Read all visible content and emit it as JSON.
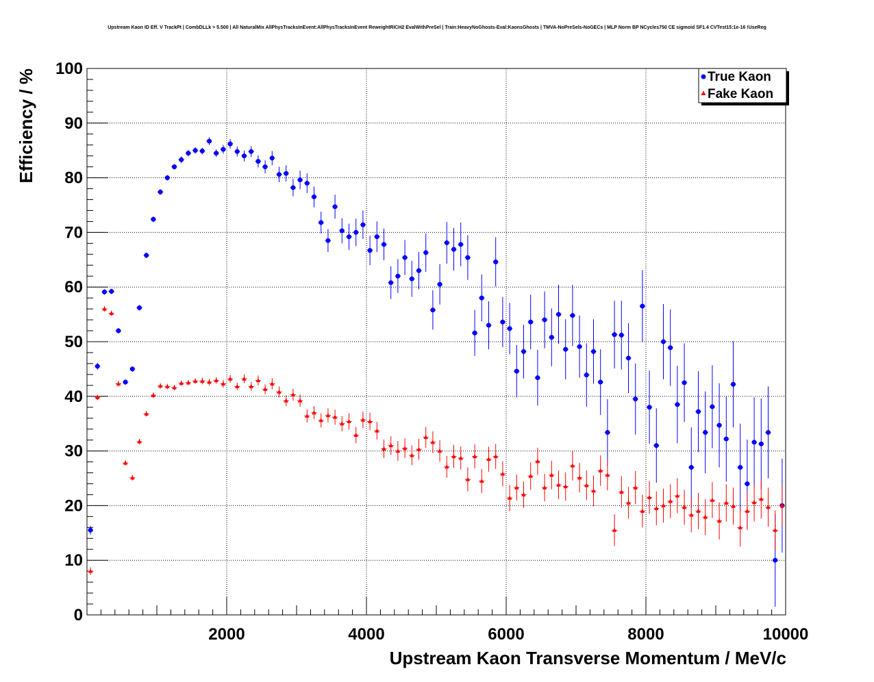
{
  "chart_data": {
    "type": "scatter",
    "title": "Upstream Kaon ID Eff. V TrackPt | CombDLLk > 5.500 | All NaturalMix AllPhysTracksInEvent:AllPhysTracksInEvent ReweightRICH2 EvalWithPreSel | Train:HeavyNoGhosts-Eval:KaonsGhosts | TMVA-NoPreSels-NoGECs | MLP Norm BP NCycles750 CE sigmoid SF1.4 CVTest15:1e-16 !UseReg",
    "xlabel": "Upstream Kaon Transverse Momentum / MeV/c",
    "ylabel": "Efficiency / %",
    "xlim": [
      0,
      10000
    ],
    "ylim": [
      0,
      100
    ],
    "x_ticks": [
      2000,
      4000,
      6000,
      8000,
      10000
    ],
    "x_tick_labels": [
      "2000",
      "4000",
      "6000",
      "8000",
      "10000"
    ],
    "y_ticks": [
      0,
      10,
      20,
      30,
      40,
      50,
      60,
      70,
      80,
      90,
      100
    ],
    "y_tick_labels": [
      "0",
      "10",
      "20",
      "30",
      "40",
      "50",
      "60",
      "70",
      "80",
      "90",
      "100"
    ],
    "grid": true,
    "legend_position": "top-right",
    "x": [
      50,
      150,
      250,
      350,
      450,
      550,
      650,
      750,
      850,
      950,
      1050,
      1150,
      1250,
      1350,
      1450,
      1550,
      1650,
      1750,
      1850,
      1950,
      2050,
      2150,
      2250,
      2350,
      2450,
      2550,
      2650,
      2750,
      2850,
      2950,
      3050,
      3150,
      3250,
      3350,
      3450,
      3550,
      3650,
      3750,
      3850,
      3950,
      4050,
      4150,
      4250,
      4350,
      4450,
      4550,
      4650,
      4750,
      4850,
      4950,
      5050,
      5150,
      5250,
      5350,
      5450,
      5550,
      5650,
      5750,
      5850,
      5950,
      6050,
      6150,
      6250,
      6350,
      6450,
      6550,
      6650,
      6750,
      6850,
      6950,
      7050,
      7150,
      7250,
      7350,
      7450,
      7550,
      7650,
      7750,
      7850,
      7950,
      8050,
      8150,
      8250,
      8350,
      8450,
      8550,
      8650,
      8750,
      8850,
      8950,
      9050,
      9150,
      9250,
      9350,
      9450,
      9550,
      9650,
      9750,
      9850,
      9950
    ],
    "series": [
      {
        "name": "True Kaon",
        "color": "#0000ff",
        "marker": "circle",
        "values": [
          15.5,
          45.5,
          59.1,
          59.2,
          52,
          42.6,
          45,
          56.2,
          65.8,
          72.4,
          77.4,
          80,
          82,
          83.3,
          84.5,
          85,
          84.9,
          86.7,
          84.5,
          85.2,
          86.2,
          84.8,
          84,
          84.8,
          83,
          82,
          83.6,
          80.6,
          80.8,
          78.2,
          79.6,
          79,
          76.5,
          71.8,
          68.5,
          74.7,
          70.3,
          69.2,
          70,
          71.4,
          66.7,
          69.2,
          67.8,
          60.8,
          62,
          65.4,
          61.5,
          63,
          66.3,
          55.8,
          60.5,
          68.1,
          66.9,
          67.8,
          65.4,
          51.6,
          58,
          53,
          64.6,
          53.6,
          52.4,
          44.6,
          48.2,
          53.6,
          43.4,
          54,
          50.8,
          55,
          48.6,
          54.8,
          49.1,
          43.9,
          48.2,
          42.6,
          33.4,
          51.3,
          51.2,
          47,
          39.5,
          56.5,
          38,
          31,
          50,
          48.9,
          38.5,
          42.5,
          27,
          37.2,
          33.4,
          38.1,
          34.7,
          32.2,
          42.2,
          27,
          24,
          31.6,
          31.3,
          33.4,
          10,
          20
        ],
        "errors": [
          0.8,
          0.6,
          0.5,
          0.5,
          0.5,
          0.5,
          0.5,
          0.5,
          0.5,
          0.5,
          0.5,
          0.5,
          0.5,
          0.6,
          0.6,
          0.6,
          0.6,
          0.7,
          0.7,
          0.8,
          0.9,
          0.9,
          1,
          1,
          1.1,
          1.2,
          1.3,
          1.4,
          1.5,
          1.6,
          1.7,
          1.8,
          1.9,
          2,
          2.1,
          2.2,
          2.3,
          2.4,
          2.5,
          2.6,
          2.7,
          2.8,
          2.9,
          3,
          3.1,
          3.2,
          3.3,
          3.4,
          3.5,
          3.6,
          3.7,
          3.8,
          3.9,
          4,
          4.1,
          4.2,
          4.3,
          4.4,
          4.5,
          4.6,
          4.7,
          4.8,
          4.9,
          5,
          5.1,
          5.2,
          5.3,
          5.4,
          5.5,
          5.6,
          5.7,
          5.8,
          5.9,
          6,
          6.1,
          6.2,
          6.3,
          6.4,
          6.5,
          6.6,
          6.7,
          6.8,
          6.9,
          7,
          7.1,
          7.2,
          7.3,
          7.4,
          7.5,
          7.6,
          7.7,
          7.8,
          7.9,
          8,
          8.1,
          8.2,
          8.3,
          8.4,
          8.5,
          8.6
        ]
      },
      {
        "name": "Fake Kaon",
        "color": "#ff0000",
        "marker": "triangle",
        "values": [
          8,
          39.8,
          56,
          55.2,
          42.3,
          27.8,
          25.1,
          31.7,
          36.8,
          40.2,
          41.9,
          41.8,
          41.6,
          42.4,
          42.5,
          42.8,
          42.8,
          42.6,
          42.9,
          42.3,
          43.2,
          41.8,
          43.2,
          41.8,
          42.9,
          41.3,
          42.3,
          40.8,
          39.2,
          40.3,
          39.2,
          36.4,
          37,
          35.6,
          36.5,
          36.2,
          35,
          35.4,
          32.9,
          35.7,
          35.4,
          33.7,
          30.4,
          31,
          30,
          30.5,
          29.2,
          30.3,
          32.5,
          31.6,
          30,
          27.1,
          29,
          28.7,
          24.8,
          29,
          24.5,
          28.5,
          29,
          25.8,
          21.4,
          23.3,
          22,
          25.4,
          28.1,
          23.3,
          25.6,
          23.8,
          23.5,
          27.3,
          25.1,
          23.7,
          22.7,
          26.4,
          25.6,
          15.5,
          22.5,
          20.5,
          23.3,
          19,
          21.5,
          19.5,
          20,
          20.8,
          21.8,
          19.7,
          18.3,
          19,
          17.9,
          21,
          17.2,
          20.5,
          19.9,
          16,
          19,
          20.6,
          21.2,
          19.7,
          15.5,
          20
        ],
        "errors": [
          0.7,
          0.5,
          0.5,
          0.5,
          0.5,
          0.5,
          0.5,
          0.5,
          0.5,
          0.5,
          0.5,
          0.5,
          0.5,
          0.5,
          0.5,
          0.5,
          0.6,
          0.6,
          0.6,
          0.7,
          0.7,
          0.7,
          0.8,
          0.8,
          0.9,
          0.9,
          1,
          1,
          1,
          1.1,
          1.1,
          1.2,
          1.2,
          1.3,
          1.3,
          1.4,
          1.4,
          1.5,
          1.5,
          1.5,
          1.6,
          1.6,
          1.7,
          1.7,
          1.8,
          1.8,
          1.8,
          1.9,
          1.9,
          2,
          2,
          2,
          2.1,
          2.1,
          2.2,
          2.2,
          2.2,
          2.3,
          2.3,
          2.3,
          2.4,
          2.4,
          2.4,
          2.5,
          2.5,
          2.5,
          2.6,
          2.6,
          2.6,
          2.7,
          2.7,
          2.7,
          2.8,
          2.8,
          2.8,
          2.9,
          2.9,
          2.9,
          3,
          3,
          3,
          3.1,
          3.1,
          3.1,
          3.2,
          3.2,
          3.2,
          3.3,
          3.3,
          3.3,
          3.4,
          3.4,
          3.4,
          3.5,
          3.5,
          3.5,
          3.6,
          3.6,
          3.6,
          3.7
        ]
      }
    ]
  }
}
